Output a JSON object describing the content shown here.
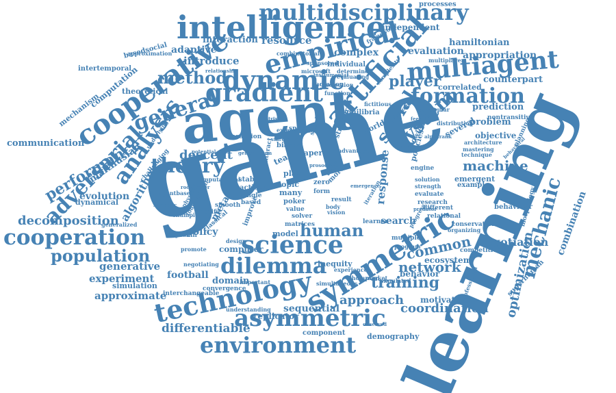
{
  "color": "#4682B4",
  "words": [
    {
      "text": "game"
    },
    {
      "text": "learning"
    },
    {
      "text": "agent"
    },
    {
      "text": "intelligence"
    },
    {
      "text": "multidisciplinary"
    },
    {
      "text": "empirical"
    },
    {
      "text": "artificial"
    },
    {
      "text": "multiagent"
    },
    {
      "text": "cooperative"
    },
    {
      "text": "dynamic"
    },
    {
      "text": "gradient"
    },
    {
      "text": "general"
    },
    {
      "text": "method"
    },
    {
      "text": "formation"
    },
    {
      "text": "player"
    },
    {
      "text": "social"
    },
    {
      "text": "system"
    },
    {
      "text": "analysis"
    },
    {
      "text": "theory"
    },
    {
      "text": "adversarial"
    },
    {
      "text": "performance"
    },
    {
      "text": "cooperation"
    },
    {
      "text": "population"
    },
    {
      "text": "decomposition"
    },
    {
      "text": "science"
    },
    {
      "text": "dilemma"
    },
    {
      "text": "symmetric"
    },
    {
      "text": "technology"
    },
    {
      "text": "asymmetric"
    },
    {
      "text": "environment"
    },
    {
      "text": "training"
    },
    {
      "text": "human"
    },
    {
      "text": "approach"
    },
    {
      "text": "machine"
    },
    {
      "text": "mechanic"
    },
    {
      "text": "optimization"
    },
    {
      "text": "combination"
    },
    {
      "text": "negotiation"
    },
    {
      "text": "network"
    },
    {
      "text": "common"
    },
    {
      "text": "coordination"
    },
    {
      "text": "differentiable"
    },
    {
      "text": "experiment"
    },
    {
      "text": "generative"
    },
    {
      "text": "approximate"
    },
    {
      "text": "football"
    },
    {
      "text": "evolution"
    },
    {
      "text": "algorithm"
    },
    {
      "text": "malthusian"
    },
    {
      "text": "communication"
    },
    {
      "text": "mechanism"
    },
    {
      "text": "computation"
    },
    {
      "text": "basedsocial"
    },
    {
      "text": "intertemporal"
    },
    {
      "text": "theoretical"
    },
    {
      "text": "adaptive"
    },
    {
      "text": "introduce"
    },
    {
      "text": "interaction"
    },
    {
      "text": "resource"
    },
    {
      "text": "complex"
    },
    {
      "text": "processes"
    },
    {
      "text": "independent"
    },
    {
      "text": "hamiltonian"
    },
    {
      "text": "evaluation"
    },
    {
      "text": "appropriation"
    },
    {
      "text": "counterpart"
    },
    {
      "text": "correlated"
    },
    {
      "text": "prediction"
    },
    {
      "text": "several"
    },
    {
      "text": "problem"
    },
    {
      "text": "objective"
    },
    {
      "text": "descent"
    },
    {
      "text": "response"
    },
    {
      "text": "search"
    },
    {
      "text": "policy"
    },
    {
      "text": "computer"
    },
    {
      "text": "model"
    },
    {
      "text": "domain"
    },
    {
      "text": "sequential"
    },
    {
      "text": "replicator"
    },
    {
      "text": "behavior"
    },
    {
      "text": "ecosystem"
    },
    {
      "text": "motivation"
    },
    {
      "text": "demography"
    },
    {
      "text": "component"
    },
    {
      "text": "dynamical"
    },
    {
      "text": "simulation"
    },
    {
      "text": "interchangeable"
    },
    {
      "text": "convergence"
    },
    {
      "text": "emergent"
    },
    {
      "text": "example"
    },
    {
      "text": "behaviour"
    },
    {
      "text": "inequity"
    },
    {
      "text": "superhuman"
    },
    {
      "text": "knowledge"
    },
    {
      "text": "policies"
    },
    {
      "text": "world"
    },
    {
      "text": "equilibria"
    },
    {
      "text": "individual"
    },
    {
      "text": "radiation"
    },
    {
      "text": "coalition"
    },
    {
      "text": "meta"
    },
    {
      "text": "classical"
    },
    {
      "text": "specific"
    },
    {
      "text": "team"
    },
    {
      "text": "biases"
    },
    {
      "text": "paper"
    },
    {
      "text": "play"
    },
    {
      "text": "topic"
    },
    {
      "text": "many"
    },
    {
      "text": "poker"
    },
    {
      "text": "value"
    },
    {
      "text": "solver"
    },
    {
      "text": "matrices"
    },
    {
      "text": "research"
    },
    {
      "text": "engine"
    },
    {
      "text": "mastering"
    },
    {
      "text": "multiplayer"
    },
    {
      "text": "framework"
    },
    {
      "text": "planning"
    },
    {
      "text": "stable"
    },
    {
      "text": "action"
    },
    {
      "text": "single"
    },
    {
      "text": "based"
    },
    {
      "text": "zero"
    },
    {
      "text": "form"
    },
    {
      "text": "result"
    },
    {
      "text": "multiple"
    },
    {
      "text": "sponsored"
    },
    {
      "text": "challenging"
    },
    {
      "text": "bayesian"
    },
    {
      "text": "champion"
    },
    {
      "text": "interact"
    },
    {
      "text": "space"
    },
    {
      "text": "extend"
    },
    {
      "text": "simple"
    },
    {
      "text": "structure"
    },
    {
      "text": "selection"
    },
    {
      "text": "function"
    },
    {
      "text": "diplomacy"
    },
    {
      "text": "particular"
    },
    {
      "text": "nontransitive"
    },
    {
      "text": "different"
    },
    {
      "text": "relational"
    },
    {
      "text": "conservation"
    },
    {
      "text": "evaluate"
    },
    {
      "text": "strength"
    },
    {
      "text": "competitive"
    },
    {
      "text": "program"
    },
    {
      "text": "important"
    },
    {
      "text": "organizing"
    },
    {
      "text": "morphology"
    },
    {
      "text": "underlying"
    },
    {
      "text": "smooth"
    },
    {
      "text": "design"
    },
    {
      "text": "improve"
    },
    {
      "text": "body"
    },
    {
      "text": "vision"
    },
    {
      "text": "learner"
    },
    {
      "text": "progress"
    },
    {
      "text": "understanding"
    },
    {
      "text": "promote"
    },
    {
      "text": "generalized"
    },
    {
      "text": "iteration"
    },
    {
      "text": "time"
    },
    {
      "text": "task"
    },
    {
      "text": "more"
    },
    {
      "text": "simulated"
    },
    {
      "text": "architecture"
    },
    {
      "text": "technique"
    },
    {
      "text": "microsoft"
    },
    {
      "text": "approximation"
    },
    {
      "text": "relationship"
    },
    {
      "text": "determined"
    },
    {
      "text": "evaluating"
    },
    {
      "text": "complexity"
    },
    {
      "text": "instrumental"
    },
    {
      "text": "foundational"
    },
    {
      "text": "combinatorial"
    },
    {
      "text": "fictitious"
    },
    {
      "text": "distribution"
    },
    {
      "text": "potential"
    },
    {
      "text": "agentbased"
    },
    {
      "text": "solution"
    },
    {
      "text": "predator"
    },
    {
      "text": "advantage"
    },
    {
      "text": "negotiating"
    },
    {
      "text": "experience"
    },
    {
      "text": "thompson"
    },
    {
      "text": "market"
    },
    {
      "text": "observed"
    },
    {
      "text": "simultaneous"
    },
    {
      "text": "behavioral"
    },
    {
      "text": "professional"
    },
    {
      "text": "computational"
    },
    {
      "text": "physical"
    },
    {
      "text": "symbolic"
    },
    {
      "text": "general-sum"
    },
    {
      "text": "rock-paper"
    },
    {
      "text": "starcraft"
    },
    {
      "text": "prosocial"
    },
    {
      "text": "matrix"
    },
    {
      "text": "spatial"
    },
    {
      "text": "emergence"
    },
    {
      "text": "feedback"
    },
    {
      "text": "alpharank"
    },
    {
      "text": "reward"
    },
    {
      "text": "strategy"
    }
  ]
}
